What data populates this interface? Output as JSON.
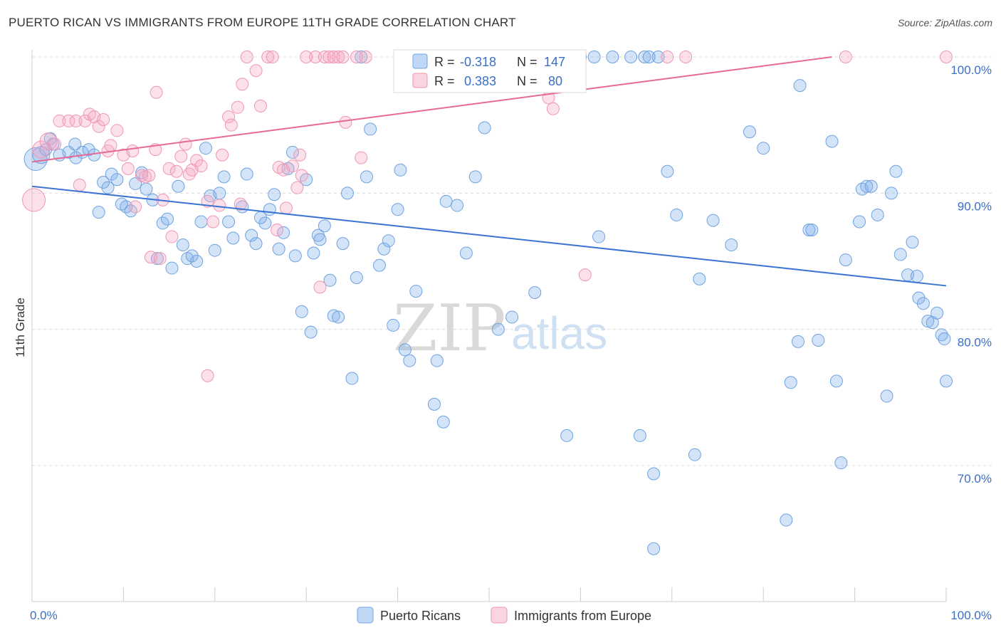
{
  "title": "PUERTO RICAN VS IMMIGRANTS FROM EUROPE 11TH GRADE CORRELATION CHART",
  "source": "Source: ZipAtlas.com",
  "colors": {
    "blue": "#6fa3e0",
    "blue_fill": "rgba(130,175,235,0.35)",
    "blue_line": "#3b74d1",
    "pink": "#ef96b4",
    "pink_fill": "rgba(245,170,195,0.35)",
    "pink_line": "#e66a95",
    "text_blue": "#3b6fc4"
  },
  "legend": {
    "r_label": "R =",
    "n_label": "N =",
    "rows": [
      {
        "r": "-0.318",
        "n": "147"
      },
      {
        "r": "0.383",
        "n": "80"
      }
    ]
  },
  "watermark": {
    "zip": "ZIP",
    "atlas": "atlas"
  },
  "chart_data": {
    "type": "scatter",
    "title": "PUERTO RICAN VS IMMIGRANTS FROM EUROPE 11TH GRADE CORRELATION CHART",
    "xlabel": "",
    "ylabel": "11th Grade",
    "xlim": [
      0,
      100
    ],
    "ylim": [
      60,
      102
    ],
    "x_tick_labels": [
      "0.0%",
      "100.0%"
    ],
    "y_ticks": [
      70,
      80,
      90,
      100
    ],
    "y_tick_labels": [
      "70.0%",
      "80.0%",
      "90.0%",
      "100.0%"
    ],
    "grid": true,
    "series": [
      {
        "name": "Puerto Ricans",
        "trend": {
          "x": [
            0,
            100
          ],
          "y": [
            90.5,
            83.2
          ]
        },
        "points": [
          [
            0.4,
            92.5,
            3
          ],
          [
            1.0,
            92.8,
            2
          ],
          [
            1.5,
            93.2,
            1
          ],
          [
            2.0,
            94.0,
            1
          ],
          [
            2.3,
            93.6,
            1
          ],
          [
            3.0,
            92.8,
            1
          ],
          [
            4.0,
            93.0,
            1
          ],
          [
            4.7,
            93.6,
            1
          ],
          [
            4.8,
            92.6,
            1
          ],
          [
            5.5,
            93.0,
            1
          ],
          [
            6.2,
            93.2,
            1
          ],
          [
            6.8,
            92.8,
            1
          ],
          [
            7.3,
            88.6,
            1
          ],
          [
            7.8,
            90.8,
            1
          ],
          [
            8.3,
            90.4,
            1
          ],
          [
            8.7,
            91.4,
            1
          ],
          [
            9.3,
            91.0,
            1
          ],
          [
            9.8,
            89.2,
            1
          ],
          [
            10.3,
            89.0,
            1
          ],
          [
            10.8,
            88.7,
            1
          ],
          [
            11.3,
            90.7,
            1
          ],
          [
            12.0,
            91.5,
            1
          ],
          [
            12.5,
            90.3,
            1
          ],
          [
            13.2,
            89.5,
            1
          ],
          [
            13.7,
            85.2,
            1
          ],
          [
            14.3,
            87.8,
            1
          ],
          [
            14.8,
            88.1,
            1
          ],
          [
            15.3,
            84.5,
            1
          ],
          [
            16.0,
            90.5,
            1
          ],
          [
            16.5,
            86.2,
            1
          ],
          [
            17.0,
            85.2,
            1
          ],
          [
            17.5,
            85.4,
            1
          ],
          [
            18.0,
            85.0,
            1
          ],
          [
            18.5,
            87.9,
            1
          ],
          [
            19.0,
            93.3,
            1
          ],
          [
            19.5,
            89.8,
            1
          ],
          [
            20.0,
            85.8,
            1
          ],
          [
            20.5,
            90.0,
            1
          ],
          [
            21.0,
            91.2,
            1
          ],
          [
            21.5,
            87.9,
            1
          ],
          [
            22.0,
            86.7,
            1
          ],
          [
            23.0,
            89.0,
            1
          ],
          [
            23.5,
            91.4,
            1
          ],
          [
            24.0,
            86.9,
            1
          ],
          [
            24.5,
            86.3,
            1
          ],
          [
            25.0,
            88.2,
            1
          ],
          [
            25.5,
            87.8,
            1
          ],
          [
            26.0,
            88.8,
            1
          ],
          [
            26.5,
            89.9,
            1
          ],
          [
            27.0,
            85.9,
            1
          ],
          [
            27.5,
            87.1,
            1
          ],
          [
            28.0,
            91.8,
            1
          ],
          [
            28.5,
            93.0,
            1
          ],
          [
            28.8,
            85.4,
            1
          ],
          [
            29.5,
            81.3,
            1
          ],
          [
            30.0,
            91.0,
            1
          ],
          [
            30.5,
            79.8,
            1
          ],
          [
            30.8,
            85.6,
            1
          ],
          [
            31.3,
            86.9,
            1
          ],
          [
            31.5,
            86.6,
            1
          ],
          [
            32.0,
            87.6,
            1
          ],
          [
            32.6,
            83.6,
            1
          ],
          [
            33.0,
            81.0,
            1
          ],
          [
            33.5,
            80.9,
            1
          ],
          [
            34.0,
            86.3,
            1
          ],
          [
            34.5,
            90.0,
            1
          ],
          [
            35.0,
            76.4,
            1
          ],
          [
            35.5,
            83.8,
            1
          ],
          [
            36.0,
            100.0,
            1
          ],
          [
            36.6,
            91.2,
            1
          ],
          [
            37.0,
            94.7,
            1
          ],
          [
            38.0,
            84.7,
            1
          ],
          [
            38.5,
            85.9,
            1
          ],
          [
            39.0,
            86.5,
            1
          ],
          [
            39.5,
            80.3,
            1
          ],
          [
            40.0,
            88.8,
            1
          ],
          [
            40.3,
            91.7,
            1
          ],
          [
            40.8,
            78.5,
            1
          ],
          [
            41.3,
            77.7,
            1
          ],
          [
            42.0,
            82.8,
            1
          ],
          [
            44.0,
            74.5,
            1
          ],
          [
            44.3,
            77.7,
            1
          ],
          [
            45.0,
            73.2,
            1
          ],
          [
            45.3,
            89.4,
            1
          ],
          [
            46.5,
            89.1,
            1
          ],
          [
            47.5,
            85.6,
            1
          ],
          [
            48.0,
            99.2,
            1
          ],
          [
            48.5,
            91.2,
            1
          ],
          [
            49.5,
            94.8,
            1
          ],
          [
            50.5,
            100.0,
            1
          ],
          [
            51.0,
            80.0,
            1
          ],
          [
            52.0,
            100.0,
            1
          ],
          [
            52.5,
            80.9,
            1
          ],
          [
            54.0,
            100.0,
            1
          ],
          [
            55.0,
            100.0,
            1
          ],
          [
            55.5,
            100.0,
            1
          ],
          [
            56.0,
            100.0,
            1
          ],
          [
            56.5,
            100.0,
            1
          ],
          [
            55.0,
            82.7,
            1
          ],
          [
            58.5,
            72.2,
            1
          ],
          [
            59.0,
            100.0,
            1
          ],
          [
            60.0,
            100.0,
            1
          ],
          [
            61.5,
            100.0,
            1
          ],
          [
            62.0,
            86.8,
            1
          ],
          [
            63.5,
            100.0,
            1
          ],
          [
            65.5,
            100.0,
            1
          ],
          [
            66.5,
            72.2,
            1
          ],
          [
            68.0,
            69.4,
            1
          ],
          [
            67.0,
            100.0,
            1
          ],
          [
            67.5,
            100.0,
            1
          ],
          [
            68.5,
            100.0,
            1
          ],
          [
            68.0,
            63.9,
            1
          ],
          [
            69.5,
            91.6,
            1
          ],
          [
            70.5,
            88.4,
            1
          ],
          [
            72.5,
            70.8,
            1
          ],
          [
            73.0,
            83.7,
            1
          ],
          [
            74.5,
            88.0,
            1
          ],
          [
            76.5,
            86.2,
            1
          ],
          [
            78.5,
            94.5,
            1
          ],
          [
            80.0,
            93.3,
            1
          ],
          [
            82.5,
            66.0,
            1
          ],
          [
            83.0,
            76.1,
            1
          ],
          [
            83.8,
            79.1,
            1
          ],
          [
            84.0,
            97.9,
            1
          ],
          [
            85.0,
            87.3,
            1
          ],
          [
            85.3,
            87.3,
            1
          ],
          [
            86.0,
            79.2,
            1
          ],
          [
            87.5,
            93.8,
            1
          ],
          [
            88.0,
            76.2,
            1
          ],
          [
            88.5,
            70.2,
            1
          ],
          [
            89.0,
            85.1,
            1
          ],
          [
            90.5,
            87.9,
            1
          ],
          [
            90.8,
            90.3,
            1
          ],
          [
            91.3,
            90.5,
            1
          ],
          [
            91.8,
            90.5,
            1
          ],
          [
            92.5,
            88.4,
            1
          ],
          [
            93.5,
            75.1,
            1
          ],
          [
            94.0,
            90.0,
            1
          ],
          [
            94.5,
            91.6,
            1
          ],
          [
            95.0,
            85.5,
            1
          ],
          [
            95.8,
            84.0,
            1
          ],
          [
            96.3,
            86.4,
            1
          ],
          [
            96.8,
            83.9,
            1
          ],
          [
            97.0,
            82.3,
            1
          ],
          [
            97.5,
            81.9,
            1
          ],
          [
            98.0,
            80.6,
            1
          ],
          [
            98.5,
            80.5,
            1
          ],
          [
            99.0,
            81.2,
            1
          ],
          [
            99.5,
            79.6,
            1
          ],
          [
            99.8,
            79.3,
            1
          ],
          [
            100.0,
            76.2,
            1
          ]
        ]
      },
      {
        "name": "Immigrants from Europe",
        "trend": {
          "x": [
            0,
            87.5
          ],
          "y": [
            92.3,
            100.0
          ]
        },
        "points": [
          [
            0.2,
            89.5,
            3
          ],
          [
            1.0,
            93.2,
            2
          ],
          [
            1.8,
            93.8,
            2
          ],
          [
            2.5,
            93.6,
            1
          ],
          [
            3.0,
            95.3,
            1
          ],
          [
            4.0,
            95.3,
            1
          ],
          [
            4.8,
            95.3,
            1
          ],
          [
            5.2,
            90.6,
            1
          ],
          [
            5.8,
            95.3,
            1
          ],
          [
            6.3,
            95.8,
            1
          ],
          [
            6.8,
            95.6,
            1
          ],
          [
            7.3,
            94.9,
            1
          ],
          [
            7.8,
            95.4,
            1
          ],
          [
            8.3,
            93.1,
            1
          ],
          [
            8.6,
            93.5,
            1
          ],
          [
            9.3,
            94.6,
            1
          ],
          [
            10.0,
            92.8,
            1
          ],
          [
            10.5,
            91.8,
            1
          ],
          [
            11.0,
            93.1,
            1
          ],
          [
            11.3,
            89.0,
            1
          ],
          [
            12.0,
            91.3,
            1
          ],
          [
            12.4,
            91.2,
            1
          ],
          [
            12.8,
            91.3,
            1
          ],
          [
            13.0,
            85.3,
            1
          ],
          [
            13.5,
            93.2,
            1
          ],
          [
            13.6,
            97.4,
            1
          ],
          [
            14.0,
            85.2,
            1
          ],
          [
            14.3,
            89.5,
            1
          ],
          [
            15.0,
            91.8,
            1
          ],
          [
            15.3,
            86.8,
            1
          ],
          [
            15.8,
            91.6,
            1
          ],
          [
            16.3,
            92.7,
            1
          ],
          [
            16.8,
            93.6,
            1
          ],
          [
            17.2,
            91.4,
            1
          ],
          [
            17.5,
            91.7,
            1
          ],
          [
            18.0,
            92.4,
            1
          ],
          [
            18.5,
            92.0,
            1
          ],
          [
            19.2,
            89.4,
            1
          ],
          [
            19.2,
            76.6,
            1
          ],
          [
            19.8,
            87.9,
            1
          ],
          [
            20.5,
            89.1,
            1
          ],
          [
            20.8,
            92.8,
            1
          ],
          [
            21.5,
            95.6,
            1
          ],
          [
            21.8,
            95.0,
            1
          ],
          [
            22.5,
            96.3,
            1
          ],
          [
            22.8,
            89.2,
            1
          ],
          [
            23.0,
            98.0,
            1
          ],
          [
            23.5,
            100.0,
            1
          ],
          [
            24.5,
            99.0,
            1
          ],
          [
            25.0,
            96.4,
            1
          ],
          [
            25.8,
            100.0,
            1
          ],
          [
            26.3,
            100.0,
            1
          ],
          [
            26.8,
            87.3,
            1
          ],
          [
            27.0,
            91.9,
            1
          ],
          [
            27.5,
            91.7,
            1
          ],
          [
            27.8,
            88.9,
            1
          ],
          [
            28.5,
            92.0,
            1
          ],
          [
            29.0,
            90.4,
            1
          ],
          [
            29.3,
            92.8,
            1
          ],
          [
            29.5,
            91.3,
            1
          ],
          [
            30.0,
            100.0,
            1
          ],
          [
            31.0,
            100.0,
            1
          ],
          [
            31.5,
            83.1,
            1
          ],
          [
            32.0,
            100.0,
            1
          ],
          [
            32.5,
            100.0,
            1
          ],
          [
            33.0,
            100.0,
            1
          ],
          [
            33.5,
            100.0,
            1
          ],
          [
            34.0,
            100.0,
            1
          ],
          [
            34.3,
            95.2,
            1
          ],
          [
            35.5,
            100.0,
            1
          ],
          [
            36.0,
            92.6,
            1
          ],
          [
            36.5,
            100.0,
            1
          ],
          [
            41.0,
            100.0,
            1
          ],
          [
            47.0,
            99.5,
            1
          ],
          [
            56.5,
            97.0,
            1
          ],
          [
            57.0,
            96.2,
            1
          ],
          [
            60.5,
            84.0,
            1
          ],
          [
            69.5,
            100.0,
            1
          ],
          [
            71.5,
            100.0,
            1
          ],
          [
            89.0,
            100.0,
            1
          ],
          [
            100.0,
            100.0,
            1
          ]
        ]
      }
    ],
    "legend_entries": [
      "Puerto Ricans",
      "Immigrants from Europe"
    ]
  }
}
